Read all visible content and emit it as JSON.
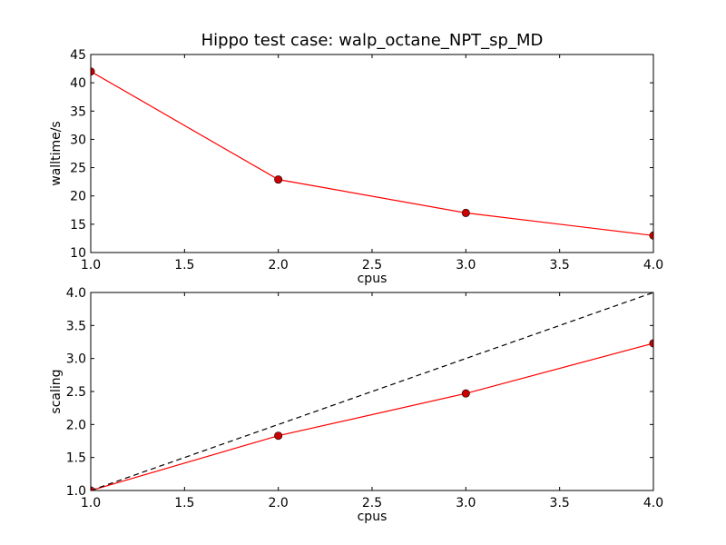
{
  "chart_data": [
    {
      "type": "line",
      "title": "Hippo test case: walp_octane_NPT_sp_MD",
      "xlabel": "cpus",
      "ylabel": "walltime/s",
      "xlim": [
        1.0,
        4.0
      ],
      "ylim": [
        10,
        45
      ],
      "xticks": [
        "1.0",
        "1.5",
        "2.0",
        "2.5",
        "3.0",
        "3.5",
        "4.0"
      ],
      "yticks": [
        "10",
        "15",
        "20",
        "25",
        "30",
        "35",
        "40",
        "45"
      ],
      "grid": false,
      "series": [
        {
          "x": [
            1,
            2,
            3,
            4
          ],
          "values": [
            42.0,
            22.9,
            17.0,
            13.0
          ],
          "color": "#ff0000",
          "marker": "circle",
          "marker_color": "#cc0000",
          "line": "solid"
        }
      ]
    },
    {
      "type": "line",
      "title": "",
      "xlabel": "cpus",
      "ylabel": "scaling",
      "xlim": [
        1.0,
        4.0
      ],
      "ylim": [
        1.0,
        4.0
      ],
      "xticks": [
        "1.0",
        "1.5",
        "2.0",
        "2.5",
        "3.0",
        "3.5",
        "4.0"
      ],
      "yticks": [
        "1.0",
        "1.5",
        "2.0",
        "2.5",
        "3.0",
        "3.5",
        "4.0"
      ],
      "grid": false,
      "series": [
        {
          "x": [
            1,
            2,
            3,
            4
          ],
          "values": [
            1.0,
            1.83,
            2.47,
            3.23
          ],
          "color": "#ff0000",
          "marker": "circle",
          "marker_color": "#cc0000",
          "line": "solid"
        },
        {
          "x": [
            1,
            4
          ],
          "values": [
            1.0,
            4.0
          ],
          "color": "#000000",
          "marker": "none",
          "line": "dashed"
        }
      ]
    }
  ]
}
